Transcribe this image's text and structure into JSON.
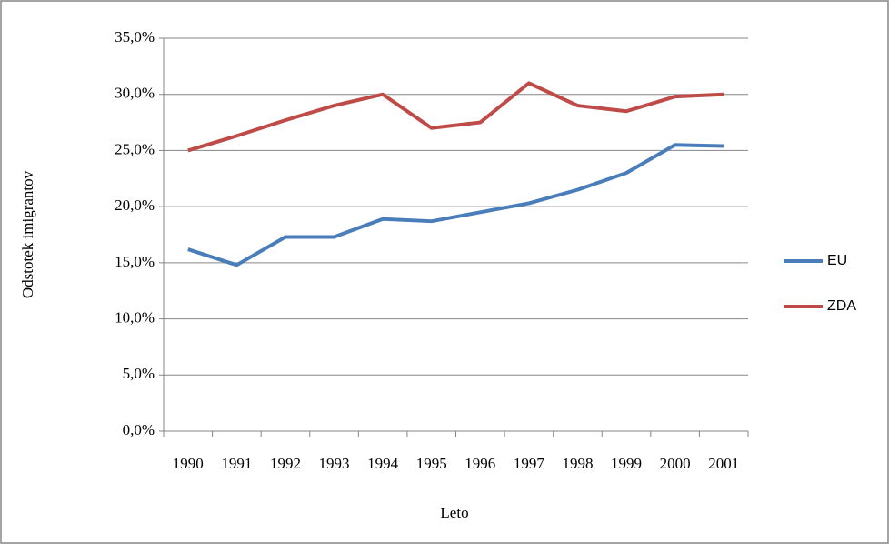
{
  "chart_data": {
    "type": "line",
    "x_label": "Leto",
    "y_label": "Odstotek imigrantov",
    "categories": [
      "1990",
      "1991",
      "1992",
      "1993",
      "1994",
      "1995",
      "1996",
      "1997",
      "1998",
      "1999",
      "2000",
      "2001"
    ],
    "series": [
      {
        "name": "EU",
        "color": "#4a7ebb",
        "values": [
          16.2,
          14.8,
          17.3,
          17.3,
          18.9,
          18.7,
          19.5,
          20.3,
          21.5,
          23.0,
          25.5,
          25.4
        ]
      },
      {
        "name": "ZDA",
        "color": "#be4b48",
        "values": [
          25.0,
          26.3,
          27.7,
          29.0,
          30.0,
          27.0,
          27.5,
          31.0,
          29.0,
          28.5,
          29.8,
          30.0
        ]
      }
    ],
    "ylim": [
      0,
      35
    ],
    "yticks": [
      {
        "value": 0,
        "label": "0,0%"
      },
      {
        "value": 5,
        "label": "5,0%"
      },
      {
        "value": 10,
        "label": "10,0%"
      },
      {
        "value": 15,
        "label": "15,0%"
      },
      {
        "value": 20,
        "label": "20,0%"
      },
      {
        "value": 25,
        "label": "25,0%"
      },
      {
        "value": 30,
        "label": "30,0%"
      },
      {
        "value": 35,
        "label": "35,0%"
      }
    ],
    "grid": true,
    "legend": "right"
  }
}
